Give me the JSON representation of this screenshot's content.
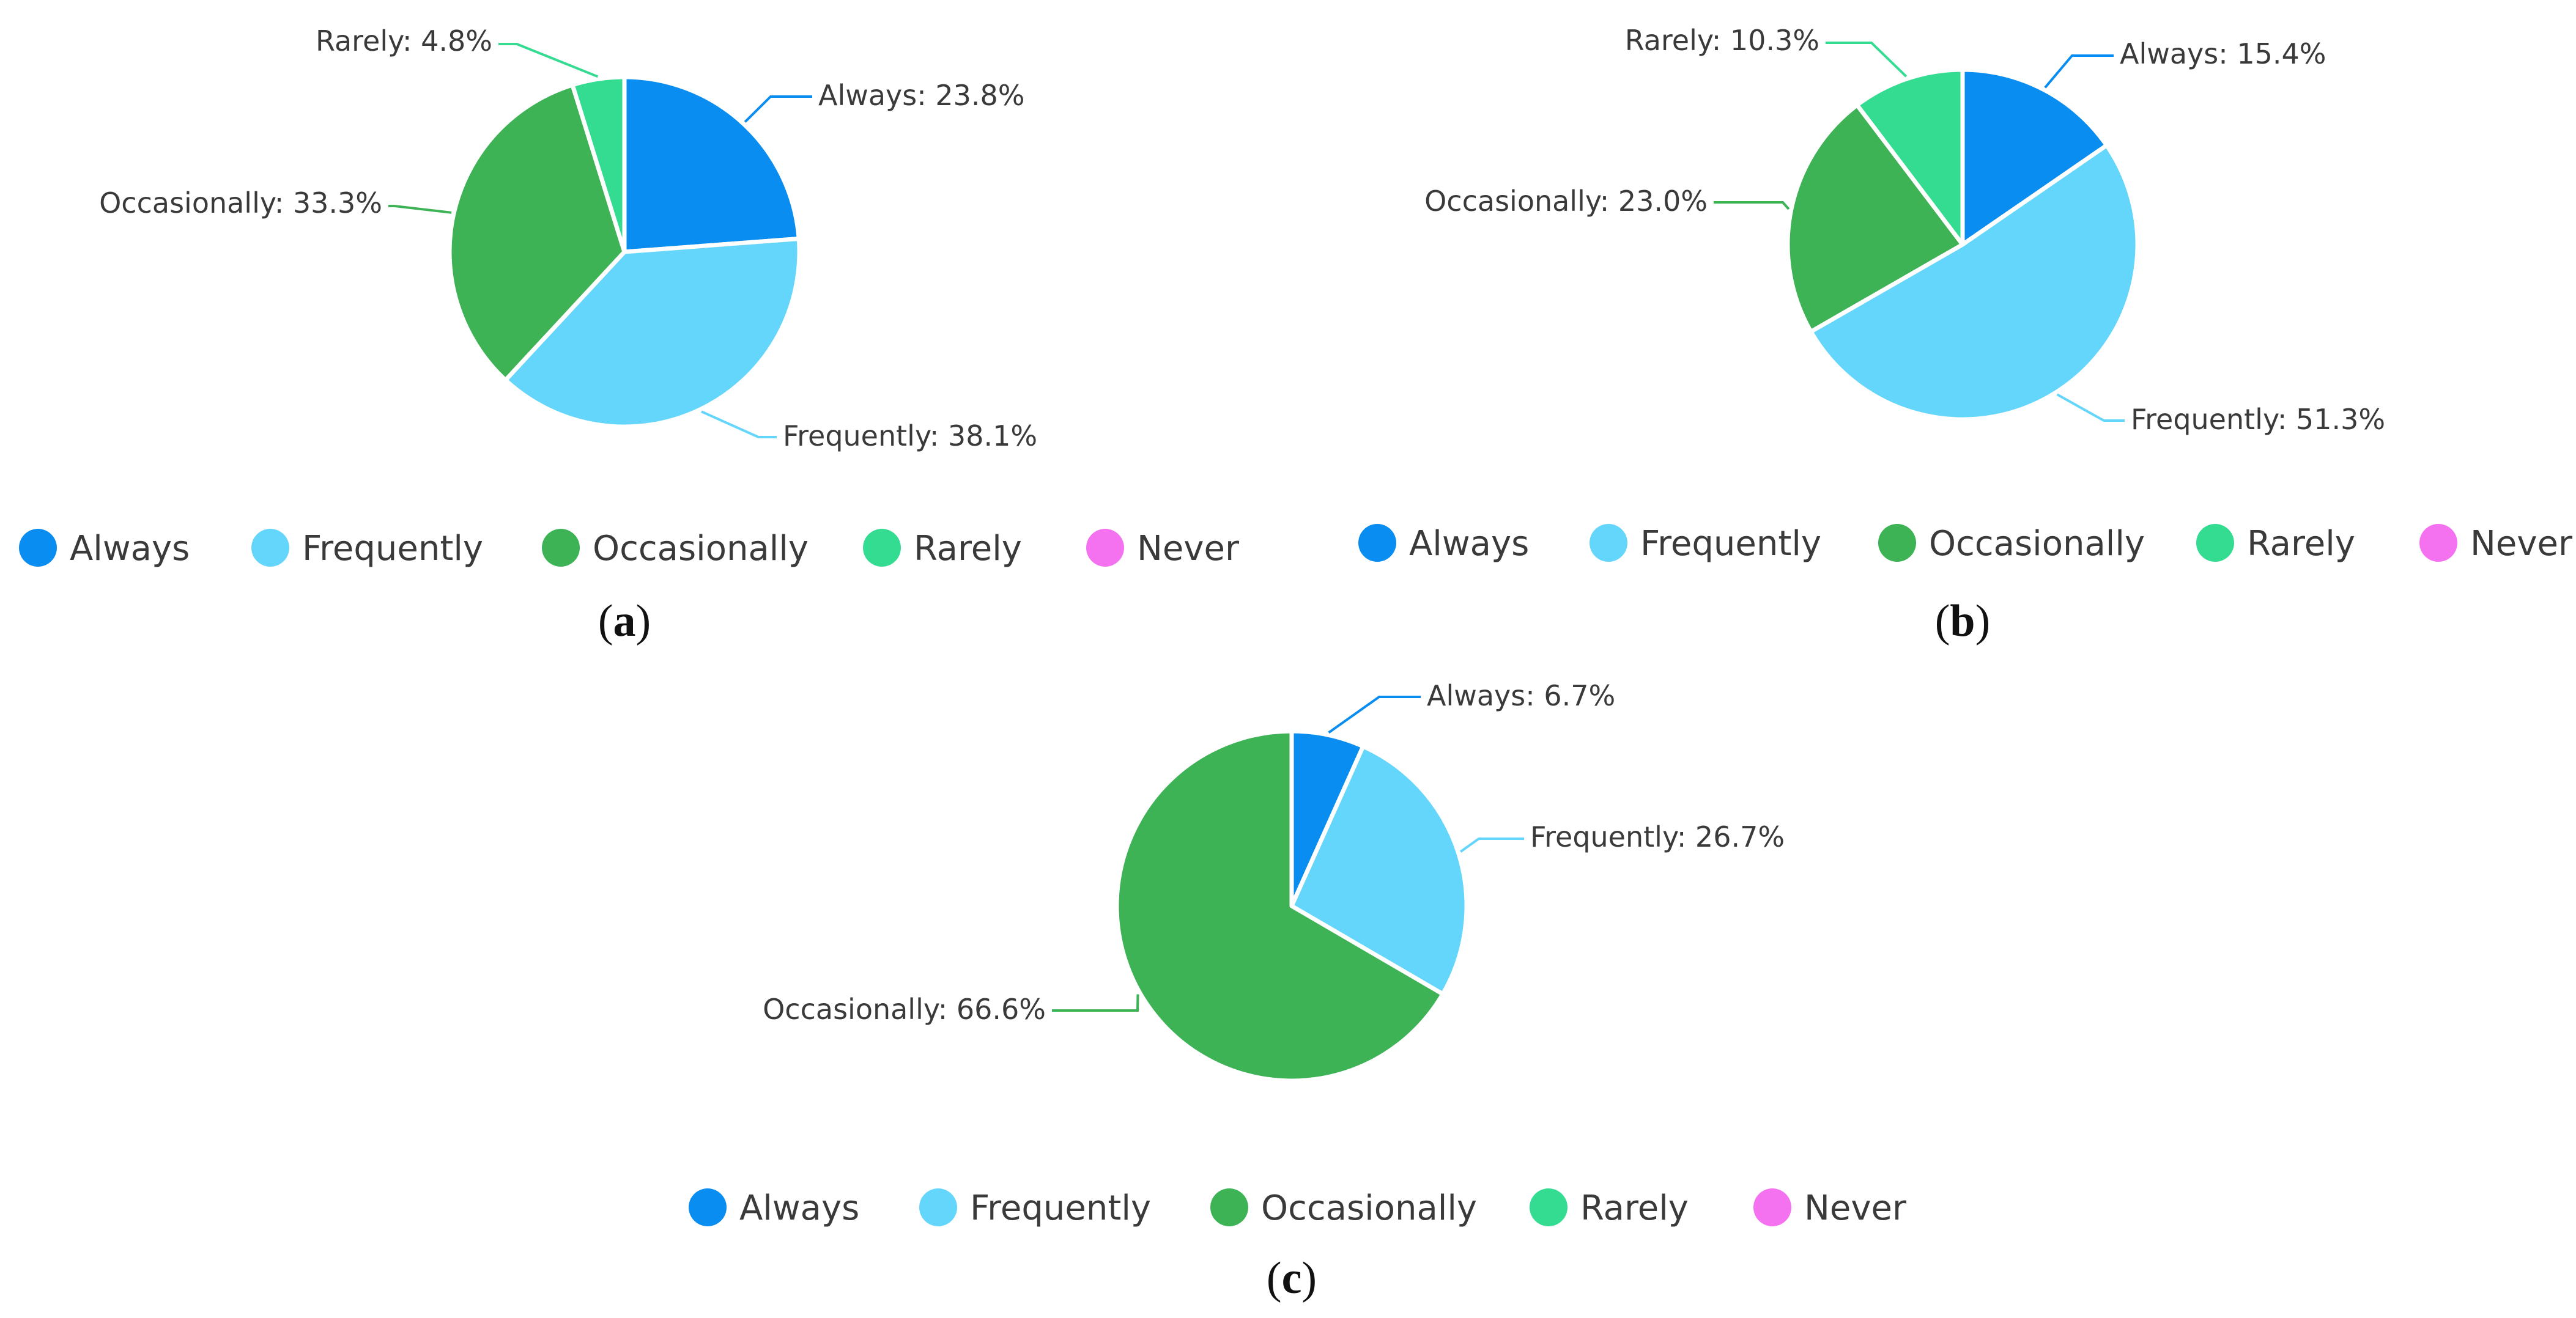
{
  "colors": {
    "Always": "#0a8df0",
    "Frequently": "#64d5fb",
    "Occasionally": "#3db356",
    "Rarely": "#33dc91",
    "Never": "#f471ef"
  },
  "chart_data": [
    {
      "type": "pie",
      "panel": "a",
      "caption": [
        "(",
        "a",
        ")"
      ],
      "start_angle_deg": 0,
      "categories": [
        "Always",
        "Frequently",
        "Occasionally",
        "Rarely",
        "Never"
      ],
      "values": [
        23.8,
        38.1,
        33.3,
        4.8,
        0
      ],
      "slice_labels": [
        "Always: 23.8%",
        "Frequently: 38.1%",
        "Occasionally: 33.3%",
        "Rarely: 4.8%",
        ""
      ],
      "legend": [
        "Always",
        "Frequently",
        "Occasionally",
        "Rarely",
        "Never"
      ]
    },
    {
      "type": "pie",
      "panel": "b",
      "caption": [
        "(",
        "b",
        ")"
      ],
      "start_angle_deg": 0,
      "categories": [
        "Always",
        "Frequently",
        "Occasionally",
        "Rarely",
        "Never"
      ],
      "values": [
        15.4,
        51.3,
        23.0,
        10.3,
        0
      ],
      "slice_labels": [
        "Always: 15.4%",
        "Frequently: 51.3%",
        "Occasionally: 23.0%",
        "Rarely: 10.3%",
        ""
      ],
      "legend": [
        "Always",
        "Frequently",
        "Occasionally",
        "Rarely",
        "Never"
      ]
    },
    {
      "type": "pie",
      "panel": "c",
      "caption": [
        "(",
        "c",
        ")"
      ],
      "start_angle_deg": 0,
      "categories": [
        "Always",
        "Frequently",
        "Occasionally",
        "Rarely",
        "Never"
      ],
      "values": [
        6.7,
        26.7,
        66.6,
        0,
        0
      ],
      "slice_labels": [
        "Always: 6.7%",
        "Frequently: 26.7%",
        "Occasionally: 66.6%",
        "",
        ""
      ],
      "legend": [
        "Always",
        "Frequently",
        "Occasionally",
        "Rarely",
        "Never"
      ]
    }
  ]
}
